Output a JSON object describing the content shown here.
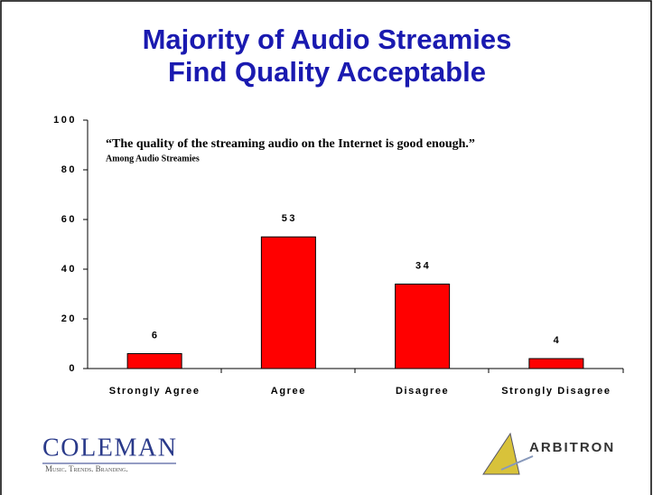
{
  "chart_data": {
    "type": "bar",
    "title": "Majority of Audio Streamies",
    "subtitle": "Find Quality Acceptable",
    "annotations": [
      "“The quality of the streaming audio on the Internet is good enough.”",
      "Among Audio Streamies"
    ],
    "categories": [
      "Strongly Agree",
      "Agree",
      "Disagree",
      "Strongly Disagree"
    ],
    "values": [
      6,
      53,
      34,
      4
    ],
    "color": "#ff0000",
    "ylim": [
      0,
      100
    ],
    "yticks": [
      0,
      20,
      40,
      60,
      80,
      100
    ],
    "grid": false,
    "logos": [
      "COLEMAN",
      "Music. Trends. Branding.",
      "ARBITRON"
    ]
  }
}
